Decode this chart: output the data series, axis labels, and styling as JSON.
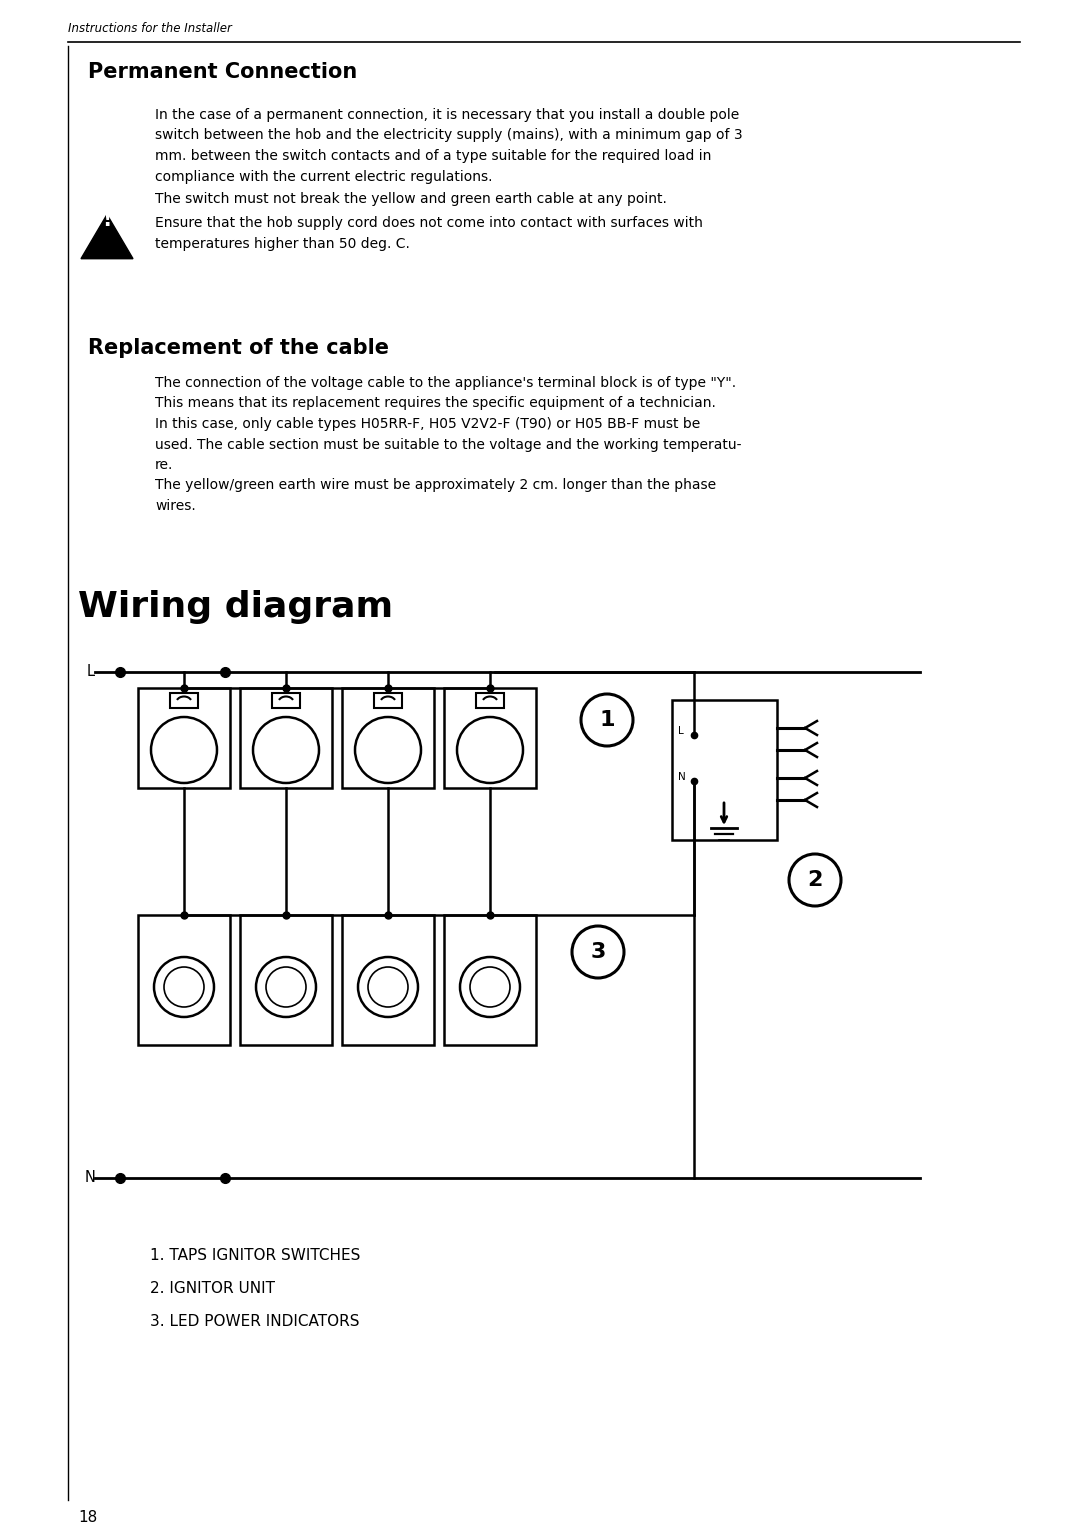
{
  "page_number": "18",
  "header_text": "Instructions for the Installer",
  "section1_title": "Permanent Connection",
  "section1_body_lines": [
    "In the case of a permanent connection, it is necessary that you install a double pole",
    "switch between the hob and the electricity supply (mains), with a minimum gap of 3",
    "mm. between the switch contacts and of a type suitable for the required load in",
    "compliance with the current electric regulations.",
    "The switch must not break the yellow and green earth cable at any point.",
    "Ensure that the hob supply cord does not come into contact with surfaces with",
    "temperatures higher than 50 deg. C."
  ],
  "section2_title": "Replacement of the cable",
  "section2_body_lines": [
    "The connection of the voltage cable to the appliance's terminal block is of type \"Y\".",
    "This means that its replacement requires the specific equipment of a technician.",
    "In this case, only cable types H05RR-F, H05 V2V2-F (T90) or H05 BB-F must be",
    "used. The cable section must be suitable to the voltage and the working temperatu-",
    "re.",
    "The yellow/green earth wire must be approximately 2 cm. longer than the phase",
    "wires."
  ],
  "diagram_title": "Wiring diagram",
  "legend": [
    "1. TAPS IGNITOR SWITCHES",
    "2. IGNITOR UNIT",
    "3. LED POWER INDICATORS"
  ],
  "bg_color": "#ffffff",
  "text_color": "#000000"
}
